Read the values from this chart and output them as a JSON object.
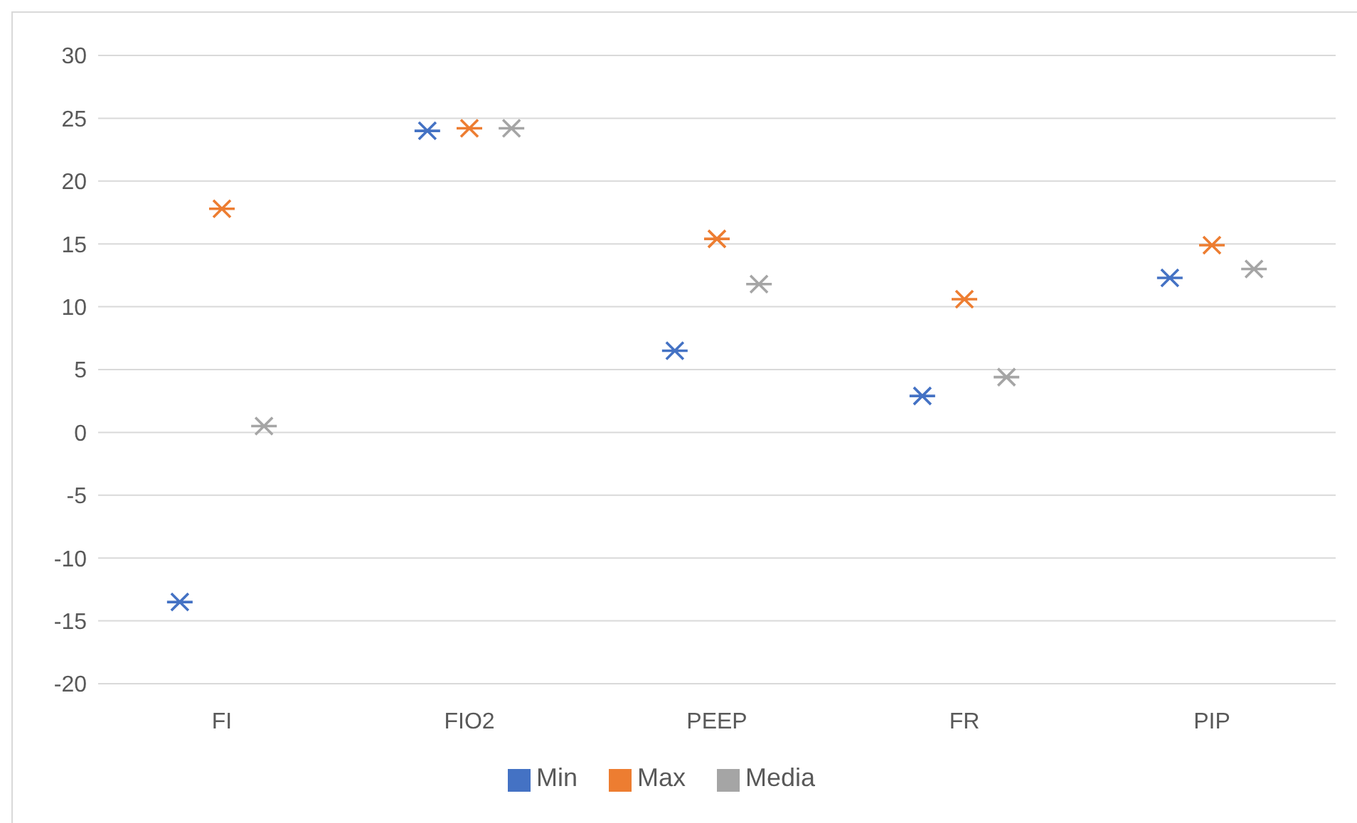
{
  "chart_data": {
    "type": "scatter",
    "categories": [
      "FI",
      "FIO2",
      "PEEP",
      "FR",
      "PIP"
    ],
    "series": [
      {
        "name": "Min",
        "color": "#4472c4",
        "values": [
          -13.5,
          24.0,
          6.5,
          2.9,
          12.3
        ]
      },
      {
        "name": "Max",
        "color": "#ed7d31",
        "values": [
          17.8,
          24.2,
          15.4,
          10.6,
          14.9
        ]
      },
      {
        "name": "Media",
        "color": "#a5a5a5",
        "values": [
          0.5,
          24.2,
          11.8,
          4.4,
          13.0
        ]
      }
    ],
    "ylim": [
      -20,
      30
    ],
    "yticks": [
      -20,
      -15,
      -10,
      -5,
      0,
      5,
      10,
      15,
      20,
      25,
      30
    ],
    "grid": "y",
    "legend": "bottom",
    "marker": "cross"
  }
}
